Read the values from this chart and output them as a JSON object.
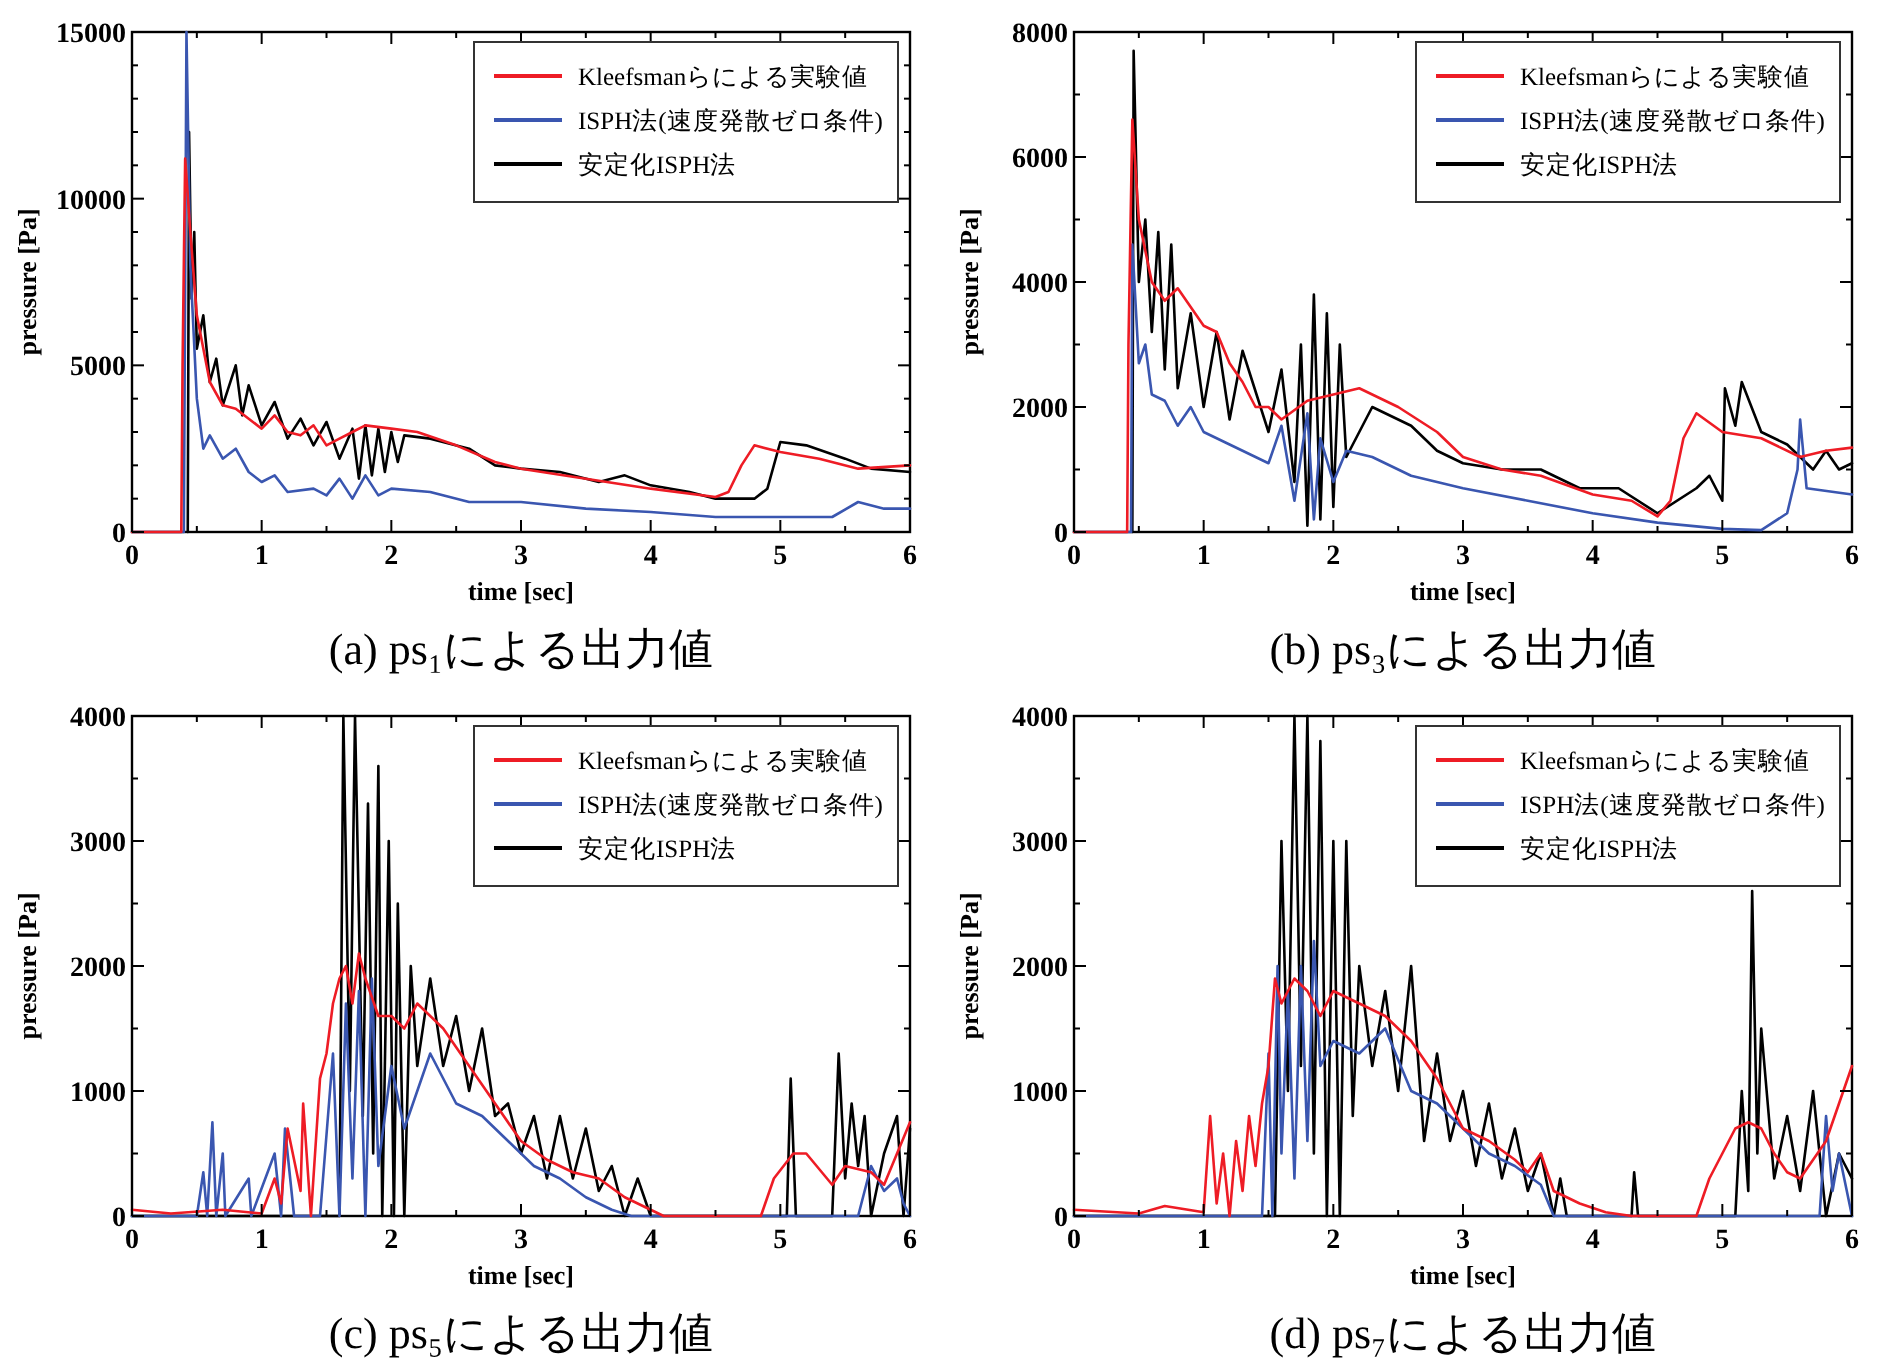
{
  "chart_data": [
    {
      "type": "line",
      "title": "(a) ps₁による出力値",
      "xlabel": "time [sec]",
      "ylabel": "pressure [Pa]",
      "legend": "top right",
      "xlim": [
        0,
        6
      ],
      "ylim": [
        0,
        15000
      ],
      "xticks": [
        0,
        {
          "value": 0.5,
          "label": null
        },
        1,
        {
          "value": 1.5,
          "label": null
        },
        2,
        {
          "value": 2.5,
          "label": null
        },
        3,
        {
          "value": 3.5,
          "label": null
        },
        4,
        {
          "value": 4.5,
          "label": null
        },
        5,
        {
          "value": 5.5,
          "label": null
        },
        6
      ],
      "yticks": [
        0,
        {
          "value": 1000,
          "label": null
        },
        {
          "value": 2000,
          "label": null
        },
        {
          "value": 3000,
          "label": null
        },
        {
          "value": 4000,
          "label": null
        },
        5000,
        {
          "value": 6000,
          "label": null
        },
        {
          "value": 7000,
          "label": null
        },
        {
          "value": 8000,
          "label": null
        },
        {
          "value": 9000,
          "label": null
        },
        10000,
        {
          "value": 11000,
          "label": null
        },
        {
          "value": 12000,
          "label": null
        },
        {
          "value": 13000,
          "label": null
        },
        {
          "value": 14000,
          "label": null
        },
        15000
      ],
      "series": [
        {
          "name": "Kleefsmanらによる実験値",
          "color": "#ee1c25",
          "x": [
            0,
            0.38,
            0.39,
            0.41,
            0.45,
            0.5,
            0.6,
            0.7,
            0.8,
            0.9,
            1.0,
            1.1,
            1.2,
            1.3,
            1.4,
            1.5,
            1.6,
            1.7,
            1.8,
            2.0,
            2.2,
            2.5,
            2.8,
            3.0,
            3.5,
            4.0,
            4.5,
            4.6,
            4.7,
            4.8,
            5.0,
            5.3,
            5.6,
            6.0
          ],
          "values": [
            0,
            0,
            5000,
            11200,
            9000,
            6500,
            4500,
            3800,
            3700,
            3400,
            3100,
            3500,
            3000,
            2900,
            3200,
            2600,
            2800,
            3000,
            3200,
            3100,
            3000,
            2600,
            2100,
            1900,
            1600,
            1300,
            1050,
            1200,
            2000,
            2600,
            2400,
            2200,
            1900,
            2000
          ]
        },
        {
          "name": "ISPH法(速度発散ゼロ条件)",
          "color": "#3a56b0",
          "x": [
            0,
            0.4,
            0.42,
            0.45,
            0.5,
            0.55,
            0.6,
            0.7,
            0.8,
            0.9,
            1.0,
            1.1,
            1.2,
            1.4,
            1.5,
            1.6,
            1.7,
            1.8,
            1.9,
            2.0,
            2.3,
            2.6,
            3.0,
            3.5,
            4.0,
            4.5,
            5.0,
            5.4,
            5.6,
            5.8,
            6.0
          ],
          "values": [
            0,
            0,
            15000,
            8000,
            4000,
            2500,
            2900,
            2200,
            2500,
            1800,
            1500,
            1700,
            1200,
            1300,
            1100,
            1600,
            1000,
            1700,
            1100,
            1300,
            1200,
            900,
            900,
            700,
            600,
            450,
            450,
            450,
            900,
            700,
            700
          ]
        },
        {
          "name": "安定化ISPH法",
          "color": "#000000",
          "x": [
            0.43,
            0.44,
            0.46,
            0.48,
            0.5,
            0.55,
            0.6,
            0.65,
            0.7,
            0.8,
            0.85,
            0.9,
            1.0,
            1.1,
            1.2,
            1.3,
            1.4,
            1.5,
            1.6,
            1.7,
            1.75,
            1.8,
            1.85,
            1.9,
            1.95,
            2.0,
            2.05,
            2.1,
            2.3,
            2.6,
            2.8,
            3.0,
            3.3,
            3.6,
            3.8,
            4.0,
            4.3,
            4.5,
            4.8,
            4.9,
            5.0,
            5.2,
            5.5,
            5.7,
            6.0
          ],
          "values": [
            0,
            12000,
            7000,
            9000,
            5500,
            6500,
            4500,
            5200,
            3800,
            5000,
            3500,
            4400,
            3200,
            3900,
            2800,
            3400,
            2600,
            3300,
            2200,
            3100,
            1600,
            3200,
            1700,
            3100,
            1800,
            3000,
            2100,
            2900,
            2800,
            2500,
            2000,
            1900,
            1800,
            1500,
            1700,
            1400,
            1200,
            1000,
            1000,
            1300,
            2700,
            2600,
            2200,
            1900,
            1800
          ]
        }
      ]
    },
    {
      "type": "line",
      "title": "(b) ps₃による出力値",
      "xlabel": "time [sec]",
      "ylabel": "pressure [Pa]",
      "legend": "top right",
      "xlim": [
        0,
        6
      ],
      "ylim": [
        0,
        8000
      ],
      "xticks": [
        0,
        {
          "value": 0.5,
          "label": null
        },
        1,
        {
          "value": 1.5,
          "label": null
        },
        2,
        {
          "value": 2.5,
          "label": null
        },
        3,
        {
          "value": 3.5,
          "label": null
        },
        4,
        {
          "value": 4.5,
          "label": null
        },
        5,
        {
          "value": 5.5,
          "label": null
        },
        6
      ],
      "yticks": [
        0,
        {
          "value": 1000,
          "label": null
        },
        2000,
        {
          "value": 3000,
          "label": null
        },
        4000,
        {
          "value": 5000,
          "label": null
        },
        6000,
        {
          "value": 7000,
          "label": null
        },
        8000
      ],
      "series": [
        {
          "name": "Kleefsmanらによる実験値",
          "color": "#ee1c25",
          "x": [
            0,
            0.41,
            0.42,
            0.45,
            0.5,
            0.6,
            0.7,
            0.8,
            0.9,
            1.0,
            1.1,
            1.2,
            1.3,
            1.4,
            1.5,
            1.6,
            1.8,
            2.0,
            2.2,
            2.5,
            2.8,
            3.0,
            3.3,
            3.6,
            4.0,
            4.3,
            4.5,
            4.6,
            4.7,
            4.8,
            5.0,
            5.3,
            5.6,
            5.8,
            6.0
          ],
          "values": [
            0,
            0,
            3000,
            6600,
            5000,
            4000,
            3700,
            3900,
            3600,
            3300,
            3200,
            2700,
            2400,
            2000,
            2000,
            1800,
            2100,
            2200,
            2300,
            2000,
            1600,
            1200,
            1000,
            900,
            600,
            500,
            250,
            500,
            1500,
            1900,
            1600,
            1500,
            1200,
            1300,
            1350
          ]
        },
        {
          "name": "ISPH法(速度発散ゼロ条件)",
          "color": "#3a56b0",
          "x": [
            0,
            0.44,
            0.45,
            0.5,
            0.55,
            0.6,
            0.7,
            0.8,
            0.9,
            1.0,
            1.2,
            1.4,
            1.5,
            1.6,
            1.7,
            1.8,
            1.85,
            1.9,
            2.0,
            2.1,
            2.3,
            2.6,
            3.0,
            3.5,
            4.0,
            4.5,
            5.0,
            5.3,
            5.5,
            5.58,
            5.6,
            5.65,
            6.0
          ],
          "values": [
            0,
            0,
            4600,
            2700,
            3000,
            2200,
            2100,
            1700,
            2000,
            1600,
            1400,
            1200,
            1100,
            1700,
            500,
            1900,
            200,
            1500,
            800,
            1300,
            1200,
            900,
            700,
            500,
            300,
            150,
            50,
            30,
            300,
            1000,
            1800,
            700,
            600
          ]
        },
        {
          "name": "安定化ISPH法",
          "color": "#000000",
          "x": [
            0.45,
            0.46,
            0.5,
            0.55,
            0.6,
            0.65,
            0.7,
            0.75,
            0.8,
            0.9,
            1.0,
            1.1,
            1.2,
            1.3,
            1.5,
            1.6,
            1.7,
            1.75,
            1.8,
            1.85,
            1.9,
            1.95,
            2.0,
            2.05,
            2.1,
            2.3,
            2.6,
            2.8,
            3.0,
            3.3,
            3.6,
            3.9,
            4.2,
            4.5,
            4.8,
            4.9,
            5.0,
            5.02,
            5.1,
            5.15,
            5.3,
            5.5,
            5.7,
            5.8,
            5.9,
            6.0
          ],
          "values": [
            0,
            7700,
            4000,
            5000,
            3200,
            4800,
            2600,
            4600,
            2300,
            3500,
            2000,
            3200,
            1800,
            2900,
            1600,
            2600,
            800,
            3000,
            100,
            3800,
            200,
            3500,
            400,
            3000,
            1200,
            2000,
            1700,
            1300,
            1100,
            1000,
            1000,
            700,
            700,
            300,
            700,
            900,
            500,
            2300,
            1700,
            2400,
            1600,
            1400,
            1000,
            1300,
            1000,
            1100
          ]
        }
      ]
    },
    {
      "type": "line",
      "title": "(c) ps₅による出力値",
      "xlabel": "time [sec]",
      "ylabel": "pressure [Pa]",
      "legend": "top right",
      "xlim": [
        0,
        6
      ],
      "ylim": [
        0,
        4000
      ],
      "xticks": [
        0,
        {
          "value": 0.5,
          "label": null
        },
        1,
        {
          "value": 1.5,
          "label": null
        },
        2,
        {
          "value": 2.5,
          "label": null
        },
        3,
        {
          "value": 3.5,
          "label": null
        },
        4,
        {
          "value": 4.5,
          "label": null
        },
        5,
        {
          "value": 5.5,
          "label": null
        },
        6
      ],
      "yticks": [
        0,
        {
          "value": 500,
          "label": null
        },
        1000,
        {
          "value": 1500,
          "label": null
        },
        2000,
        {
          "value": 2500,
          "label": null
        },
        3000,
        {
          "value": 3500,
          "label": null
        },
        4000
      ],
      "series": [
        {
          "name": "Kleefsmanらによる実験値",
          "color": "#ee1c25",
          "x": [
            0,
            0.3,
            0.7,
            1.0,
            1.1,
            1.15,
            1.2,
            1.3,
            1.32,
            1.38,
            1.45,
            1.5,
            1.55,
            1.6,
            1.65,
            1.7,
            1.75,
            1.8,
            1.9,
            2.0,
            2.1,
            2.2,
            2.4,
            2.6,
            2.8,
            3.0,
            3.2,
            3.4,
            3.6,
            3.8,
            4.0,
            4.1,
            4.85,
            4.95,
            5.1,
            5.2,
            5.4,
            5.5,
            5.7,
            5.8,
            5.9,
            6.0
          ],
          "values": [
            50,
            20,
            50,
            20,
            300,
            100,
            700,
            200,
            900,
            0,
            1100,
            1300,
            1700,
            1900,
            2000,
            1700,
            2100,
            1900,
            1600,
            1600,
            1500,
            1700,
            1500,
            1200,
            900,
            600,
            450,
            350,
            300,
            150,
            50,
            0,
            0,
            300,
            500,
            500,
            250,
            400,
            350,
            250,
            500,
            750
          ]
        },
        {
          "name": "ISPH法(速度発散ゼロ条件)",
          "color": "#3a56b0",
          "x": [
            0,
            0.5,
            0.55,
            0.58,
            0.62,
            0.65,
            0.7,
            0.72,
            0.9,
            0.92,
            1.1,
            1.15,
            1.18,
            1.25,
            1.45,
            1.55,
            1.6,
            1.65,
            1.7,
            1.75,
            1.8,
            1.85,
            1.9,
            2.0,
            2.1,
            2.3,
            2.5,
            2.7,
            2.9,
            3.1,
            3.3,
            3.5,
            3.7,
            3.85,
            5.6,
            5.7,
            5.8,
            5.9,
            5.95,
            6.0
          ],
          "values": [
            0,
            0,
            350,
            0,
            750,
            0,
            500,
            0,
            300,
            0,
            500,
            0,
            700,
            0,
            0,
            1300,
            0,
            1700,
            300,
            1800,
            0,
            1900,
            400,
            1200,
            700,
            1300,
            900,
            800,
            600,
            400,
            300,
            150,
            50,
            0,
            0,
            400,
            200,
            300,
            100,
            0
          ]
        },
        {
          "name": "安定化ISPH法",
          "color": "#000000",
          "x": [
            0,
            1.6,
            1.63,
            1.68,
            1.72,
            1.78,
            1.82,
            1.86,
            1.9,
            1.93,
            1.98,
            2.02,
            2.05,
            2.1,
            2.15,
            2.2,
            2.3,
            2.4,
            2.5,
            2.6,
            2.7,
            2.8,
            2.9,
            3.0,
            3.1,
            3.2,
            3.3,
            3.4,
            3.5,
            3.6,
            3.7,
            3.8,
            3.9,
            4.0,
            5.05,
            5.08,
            5.12,
            5.4,
            5.45,
            5.5,
            5.55,
            5.6,
            5.65,
            5.7,
            5.8,
            5.9,
            5.95,
            6.0
          ],
          "values": [
            0,
            0,
            4000,
            1000,
            4000,
            800,
            3300,
            500,
            3600,
            0,
            3000,
            0,
            2500,
            0,
            2000,
            1200,
            1900,
            1200,
            1600,
            1000,
            1500,
            800,
            900,
            500,
            800,
            300,
            800,
            300,
            700,
            200,
            400,
            0,
            300,
            0,
            0,
            1100,
            0,
            0,
            1300,
            300,
            900,
            400,
            800,
            0,
            500,
            800,
            0,
            700
          ]
        }
      ]
    },
    {
      "type": "line",
      "title": "(d) ps₇による出力値",
      "xlabel": "time [sec]",
      "ylabel": "pressure [Pa]",
      "legend": "top right",
      "xlim": [
        0,
        6
      ],
      "ylim": [
        0,
        4000
      ],
      "xticks": [
        0,
        {
          "value": 0.5,
          "label": null
        },
        1,
        {
          "value": 1.5,
          "label": null
        },
        2,
        {
          "value": 2.5,
          "label": null
        },
        3,
        {
          "value": 3.5,
          "label": null
        },
        4,
        {
          "value": 4.5,
          "label": null
        },
        5,
        {
          "value": 5.5,
          "label": null
        },
        6
      ],
      "yticks": [
        0,
        {
          "value": 500,
          "label": null
        },
        1000,
        {
          "value": 1500,
          "label": null
        },
        2000,
        {
          "value": 2500,
          "label": null
        },
        3000,
        {
          "value": 3500,
          "label": null
        },
        4000
      ],
      "series": [
        {
          "name": "Kleefsmanらによる実験値",
          "color": "#ee1c25",
          "x": [
            0,
            0.5,
            0.7,
            1.0,
            1.05,
            1.1,
            1.15,
            1.2,
            1.25,
            1.3,
            1.35,
            1.4,
            1.45,
            1.5,
            1.55,
            1.6,
            1.7,
            1.8,
            1.9,
            2.0,
            2.2,
            2.4,
            2.6,
            2.8,
            3.0,
            3.2,
            3.4,
            3.5,
            3.6,
            3.7,
            3.9,
            4.1,
            4.3,
            4.8,
            4.9,
            5.0,
            5.1,
            5.2,
            5.3,
            5.4,
            5.5,
            5.6,
            5.8,
            6.0
          ],
          "values": [
            50,
            20,
            80,
            30,
            800,
            100,
            500,
            0,
            600,
            200,
            800,
            400,
            900,
            1200,
            1900,
            1700,
            1900,
            1800,
            1600,
            1800,
            1700,
            1600,
            1400,
            1100,
            700,
            600,
            450,
            350,
            500,
            200,
            100,
            30,
            0,
            0,
            300,
            500,
            700,
            750,
            700,
            500,
            350,
            300,
            600,
            1200
          ]
        },
        {
          "name": "ISPH法(速度発散ゼロ条件)",
          "color": "#3a56b0",
          "x": [
            0,
            1.45,
            1.5,
            1.53,
            1.57,
            1.6,
            1.65,
            1.7,
            1.75,
            1.8,
            1.85,
            1.9,
            2.0,
            2.2,
            2.4,
            2.6,
            2.8,
            3.0,
            3.2,
            3.4,
            3.6,
            3.7,
            5.75,
            5.8,
            5.85,
            5.9,
            6.0
          ],
          "values": [
            0,
            0,
            1300,
            0,
            2000,
            500,
            1800,
            300,
            2000,
            600,
            2200,
            1200,
            1400,
            1300,
            1500,
            1000,
            900,
            700,
            500,
            400,
            250,
            0,
            0,
            800,
            200,
            500,
            0
          ]
        },
        {
          "name": "安定化ISPH法",
          "color": "#000000",
          "x": [
            0,
            1.55,
            1.6,
            1.65,
            1.7,
            1.75,
            1.8,
            1.85,
            1.9,
            1.95,
            2.0,
            2.05,
            2.1,
            2.15,
            2.2,
            2.3,
            2.4,
            2.5,
            2.6,
            2.7,
            2.8,
            2.9,
            3.0,
            3.1,
            3.2,
            3.3,
            3.4,
            3.5,
            3.6,
            3.7,
            3.75,
            3.8,
            4.3,
            4.32,
            4.35,
            5.1,
            5.15,
            5.2,
            5.23,
            5.27,
            5.3,
            5.4,
            5.5,
            5.6,
            5.7,
            5.8,
            5.9,
            6.0
          ],
          "values": [
            0,
            0,
            3000,
            1000,
            4000,
            1200,
            4000,
            500,
            3800,
            0,
            3000,
            0,
            3000,
            800,
            2000,
            1200,
            1800,
            1000,
            2000,
            600,
            1300,
            600,
            1000,
            400,
            900,
            300,
            700,
            200,
            500,
            0,
            300,
            0,
            0,
            350,
            0,
            0,
            1000,
            200,
            2600,
            500,
            1500,
            300,
            800,
            200,
            1000,
            0,
            500,
            300
          ]
        }
      ]
    }
  ]
}
